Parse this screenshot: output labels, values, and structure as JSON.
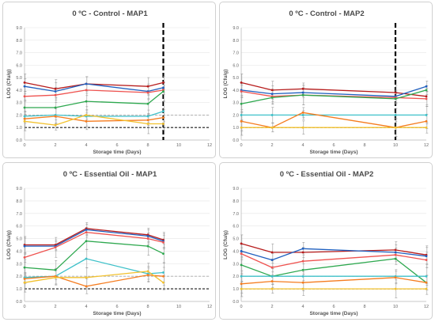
{
  "colors": {
    "dark_red": "#b71c1c",
    "blue": "#1f5fbf",
    "red": "#ef5350",
    "green": "#2ea84f",
    "cyan": "#3fc1c9",
    "orange": "#f57c1f",
    "yellow": "#f2c12e",
    "grid": "#e6e6e6",
    "ref_gray": "#a8a8a8",
    "ref_black": "#1a1a1a"
  },
  "chart_data": [
    {
      "type": "line",
      "title": "0 ºC - Control - MAP1",
      "xlabel": "Storage time (Days)",
      "ylabel": "LOG (Cfu/g)",
      "xlim": [
        0,
        12
      ],
      "ylim": [
        0,
        9
      ],
      "xticks": [
        "0",
        "2",
        "4",
        "6",
        "8",
        "10",
        "12"
      ],
      "yticks": [
        "0.0",
        "1.0",
        "2.0",
        "3.0",
        "4.0",
        "5.0",
        "6.0",
        "7.0",
        "8.0",
        "9.0"
      ],
      "grid": true,
      "reference_lines": [
        2.0,
        1.0
      ],
      "vertical_marker": 9,
      "series": [
        {
          "color": "dark_red",
          "x": [
            0,
            2,
            4,
            8,
            9
          ],
          "y": [
            4.6,
            4.1,
            4.5,
            4.3,
            4.6
          ]
        },
        {
          "color": "blue",
          "x": [
            0,
            2,
            4,
            8,
            9
          ],
          "y": [
            4.3,
            3.9,
            4.5,
            3.9,
            4.2
          ]
        },
        {
          "color": "red",
          "x": [
            0,
            2,
            4,
            8,
            9
          ],
          "y": [
            3.5,
            3.6,
            4.0,
            3.8,
            4.0
          ]
        },
        {
          "color": "green",
          "x": [
            0,
            2,
            4,
            8,
            9
          ],
          "y": [
            2.6,
            2.6,
            3.1,
            2.9,
            3.9
          ]
        },
        {
          "color": "cyan",
          "x": [
            0,
            2,
            4,
            8,
            9
          ],
          "y": [
            1.9,
            2.0,
            1.9,
            1.9,
            2.3
          ]
        },
        {
          "color": "orange",
          "x": [
            0,
            2,
            4,
            8,
            9
          ],
          "y": [
            1.7,
            1.9,
            1.5,
            1.6,
            1.8
          ]
        },
        {
          "color": "yellow",
          "x": [
            0,
            2,
            4,
            8,
            9
          ],
          "y": [
            1.5,
            1.2,
            2.0,
            1.3,
            1.3
          ]
        }
      ]
    },
    {
      "type": "line",
      "title": "0 ºC - Control - MAP2",
      "xlabel": "Storage time (Days)",
      "ylabel": "LOG (Cfu/g)",
      "xlim": [
        0,
        12
      ],
      "ylim": [
        0,
        9
      ],
      "xticks": [
        "0",
        "2",
        "4",
        "6",
        "8",
        "10",
        "12"
      ],
      "yticks": [
        "0.0",
        "1.0",
        "2.0",
        "3.0",
        "4.0",
        "5.0",
        "6.0",
        "7.0",
        "8.0",
        "9.0"
      ],
      "grid": true,
      "reference_lines": [
        2.0,
        1.0
      ],
      "vertical_marker": 10,
      "series": [
        {
          "color": "dark_red",
          "x": [
            0,
            2,
            4,
            10,
            12
          ],
          "y": [
            4.6,
            4.0,
            4.1,
            3.8,
            3.5
          ]
        },
        {
          "color": "blue",
          "x": [
            0,
            2,
            4,
            10,
            12
          ],
          "y": [
            4.0,
            3.7,
            3.8,
            3.5,
            4.3
          ]
        },
        {
          "color": "red",
          "x": [
            0,
            2,
            4,
            10,
            12
          ],
          "y": [
            3.9,
            3.5,
            3.6,
            3.4,
            3.3
          ]
        },
        {
          "color": "green",
          "x": [
            0,
            2,
            4,
            10,
            12
          ],
          "y": [
            2.9,
            3.4,
            3.6,
            3.3,
            4.0
          ]
        },
        {
          "color": "cyan",
          "x": [
            0,
            2,
            4,
            10,
            12
          ],
          "y": [
            2.0,
            2.0,
            2.0,
            2.0,
            2.0
          ]
        },
        {
          "color": "orange",
          "x": [
            0,
            2,
            4,
            10,
            12
          ],
          "y": [
            1.5,
            1.0,
            2.2,
            1.0,
            1.5
          ]
        },
        {
          "color": "yellow",
          "x": [
            0,
            2,
            4,
            10,
            12
          ],
          "y": [
            1.0,
            1.0,
            1.0,
            1.0,
            1.0
          ]
        }
      ]
    },
    {
      "type": "line",
      "title": "0 ºC - Essential Oil - MAP1",
      "xlabel": "Storage time (Days)",
      "ylabel": "LOG (Cfu/g)",
      "xlim": [
        0,
        12
      ],
      "ylim": [
        0,
        9
      ],
      "xticks": [
        "0",
        "2",
        "4",
        "6",
        "8",
        "10",
        "12"
      ],
      "yticks": [
        "0.0",
        "1.0",
        "2.0",
        "3.0",
        "4.0",
        "5.0",
        "6.0",
        "7.0",
        "8.0",
        "9.0"
      ],
      "grid": true,
      "reference_lines": [
        2.0,
        1.0
      ],
      "series": [
        {
          "color": "dark_red",
          "x": [
            0,
            2,
            4,
            8,
            9
          ],
          "y": [
            4.5,
            4.5,
            5.8,
            5.3,
            4.9
          ]
        },
        {
          "color": "blue",
          "x": [
            0,
            2,
            4,
            8,
            9
          ],
          "y": [
            4.4,
            4.4,
            5.7,
            5.2,
            4.8
          ]
        },
        {
          "color": "red",
          "x": [
            0,
            2,
            4,
            8,
            9
          ],
          "y": [
            3.5,
            4.3,
            5.5,
            5.0,
            4.7
          ]
        },
        {
          "color": "green",
          "x": [
            0,
            2,
            4,
            8,
            9
          ],
          "y": [
            2.7,
            2.5,
            4.8,
            4.4,
            3.8
          ]
        },
        {
          "color": "cyan",
          "x": [
            0,
            2,
            4,
            8,
            9
          ],
          "y": [
            1.9,
            2.0,
            3.4,
            2.2,
            2.3
          ]
        },
        {
          "color": "orange",
          "x": [
            0,
            2,
            4,
            8,
            9
          ],
          "y": [
            1.8,
            2.0,
            1.2,
            2.1,
            2.0
          ]
        },
        {
          "color": "yellow",
          "x": [
            0,
            2,
            4,
            8,
            9
          ],
          "y": [
            1.5,
            1.9,
            1.9,
            2.4,
            1.5
          ]
        }
      ]
    },
    {
      "type": "line",
      "title": "0 ºC - Essential Oil - MAP2",
      "xlabel": "Storage time (Days)",
      "ylabel": "LOG (Cfu/g)",
      "xlim": [
        0,
        12
      ],
      "ylim": [
        0,
        9
      ],
      "xticks": [
        "0",
        "2",
        "4",
        "6",
        "8",
        "10",
        "12"
      ],
      "yticks": [
        "0.0",
        "1.0",
        "2.0",
        "3.0",
        "4.0",
        "5.0",
        "6.0",
        "7.0",
        "8.0",
        "9.0"
      ],
      "grid": true,
      "reference_lines": [
        2.0,
        1.0
      ],
      "series": [
        {
          "color": "dark_red",
          "x": [
            0,
            2,
            4,
            10,
            12
          ],
          "y": [
            4.6,
            3.9,
            3.9,
            4.1,
            3.7
          ]
        },
        {
          "color": "blue",
          "x": [
            0,
            2,
            4,
            10,
            12
          ],
          "y": [
            4.0,
            3.3,
            4.2,
            3.9,
            3.6
          ]
        },
        {
          "color": "red",
          "x": [
            0,
            2,
            4,
            10,
            12
          ],
          "y": [
            3.8,
            2.7,
            3.2,
            3.7,
            3.3
          ]
        },
        {
          "color": "green",
          "x": [
            0,
            2,
            4,
            10,
            12
          ],
          "y": [
            2.9,
            2.0,
            2.5,
            3.4,
            1.5
          ]
        },
        {
          "color": "cyan",
          "x": [
            0,
            2,
            4,
            10,
            12
          ],
          "y": [
            2.0,
            2.0,
            2.0,
            2.0,
            2.0
          ]
        },
        {
          "color": "orange",
          "x": [
            0,
            2,
            4,
            10,
            12
          ],
          "y": [
            1.4,
            1.6,
            1.5,
            1.9,
            1.5
          ]
        },
        {
          "color": "yellow",
          "x": [
            0,
            2,
            4,
            10,
            12
          ],
          "y": [
            1.0,
            1.0,
            1.0,
            1.0,
            1.0
          ]
        }
      ]
    }
  ]
}
